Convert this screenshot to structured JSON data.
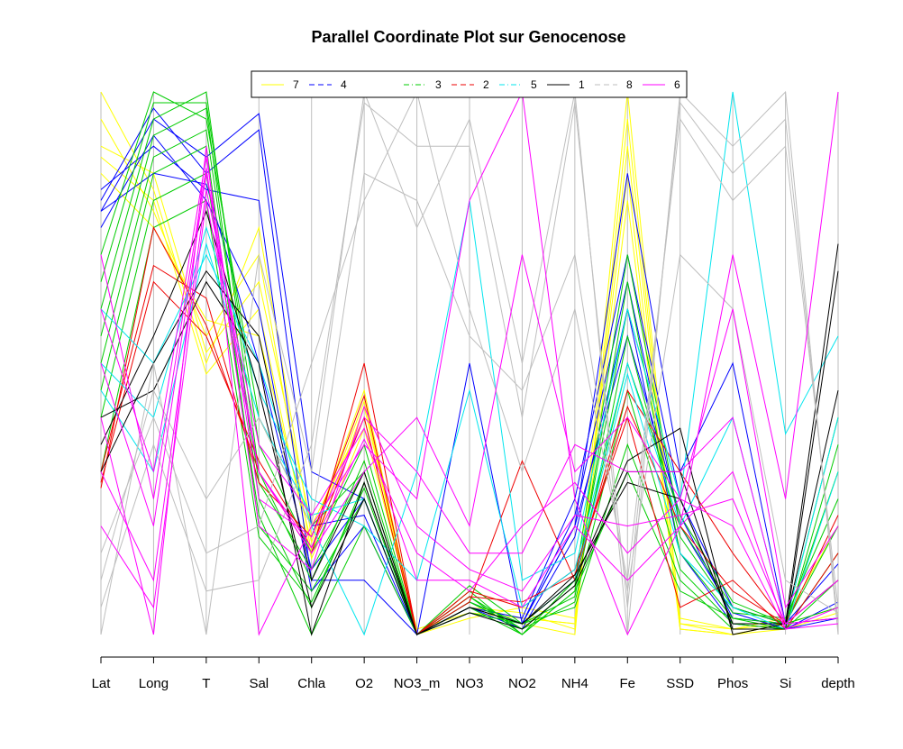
{
  "chart_data": {
    "type": "parallel-coordinates",
    "title": "Parallel Coordinate Plot sur Genocenose",
    "axes": [
      "Lat",
      "Long",
      "T",
      "Sal",
      "Chla",
      "O2",
      "NO3_m",
      "NO3",
      "NO2",
      "NH4",
      "Fe",
      "SSD",
      "Phos",
      "Si",
      "depth"
    ],
    "value_range": [
      0,
      1
    ],
    "grid": false,
    "legend_position": "top",
    "series": [
      {
        "name": "7",
        "color": "#ffff00",
        "dash": "solid",
        "lines": [
          [
            1.0,
            0.82,
            0.5,
            0.75,
            0.18,
            0.45,
            0.0,
            0.04,
            0.03,
            0.02,
            1.0,
            0.02,
            0.0,
            0.02,
            0.03
          ],
          [
            0.95,
            0.78,
            0.55,
            0.7,
            0.15,
            0.42,
            0.0,
            0.05,
            0.04,
            0.01,
            0.9,
            0.03,
            0.01,
            0.02,
            0.05
          ],
          [
            0.9,
            0.85,
            0.52,
            0.65,
            0.2,
            0.4,
            0.0,
            0.03,
            0.05,
            0.03,
            0.85,
            0.01,
            0.0,
            0.01,
            0.04
          ],
          [
            0.88,
            0.8,
            0.48,
            0.6,
            0.14,
            0.38,
            0.01,
            0.04,
            0.02,
            0.0,
            0.95,
            0.02,
            0.01,
            0.03,
            0.2
          ],
          [
            0.85,
            0.75,
            0.58,
            0.55,
            0.17,
            0.43,
            0.0,
            0.05,
            0.03,
            0.02,
            0.8,
            0.01,
            0.0,
            0.02,
            0.3
          ]
        ]
      },
      {
        "name": "4",
        "color": "#0000ff",
        "dash": "dashed",
        "lines": [
          [
            0.78,
            0.95,
            0.88,
            0.96,
            0.3,
            0.25,
            0.0,
            0.5,
            0.02,
            0.2,
            0.85,
            0.3,
            0.5,
            0.02,
            0.1
          ],
          [
            0.8,
            0.97,
            0.85,
            0.93,
            0.2,
            0.22,
            0.0,
            0.05,
            0.03,
            0.25,
            0.7,
            0.25,
            0.05,
            0.02,
            0.13
          ],
          [
            0.82,
            0.9,
            0.82,
            0.8,
            0.1,
            0.1,
            0.0,
            0.06,
            0.02,
            0.22,
            0.65,
            0.2,
            0.04,
            0.01,
            0.06
          ],
          [
            0.75,
            0.92,
            0.8,
            0.6,
            0.08,
            0.2,
            0.0,
            0.05,
            0.01,
            0.18,
            0.6,
            0.15,
            0.02,
            0.01,
            0.03
          ],
          [
            0.78,
            0.85,
            0.83,
            0.5,
            0.12,
            0.25,
            0.0,
            0.04,
            0.02,
            0.2,
            0.55,
            0.22,
            0.03,
            0.02,
            0.03
          ]
        ]
      },
      {
        "name": "3",
        "color": "#00cc00",
        "dash": "dashdot",
        "lines": [
          [
            0.7,
            1.0,
            0.95,
            0.4,
            0.2,
            0.3,
            0.0,
            0.06,
            0.02,
            0.1,
            0.7,
            0.2,
            0.05,
            0.02,
            0.4
          ],
          [
            0.65,
            0.98,
            0.98,
            0.35,
            0.15,
            0.35,
            0.0,
            0.08,
            0.0,
            0.08,
            0.65,
            0.15,
            0.03,
            0.01,
            0.35
          ],
          [
            0.6,
            0.95,
            1.0,
            0.3,
            0.1,
            0.32,
            0.0,
            0.07,
            0.01,
            0.09,
            0.6,
            0.25,
            0.02,
            0.02,
            0.3
          ],
          [
            0.55,
            0.92,
            0.97,
            0.25,
            0.05,
            0.28,
            0.0,
            0.09,
            0.02,
            0.07,
            0.55,
            0.18,
            0.04,
            0.03,
            0.25
          ],
          [
            0.5,
            0.88,
            0.93,
            0.28,
            0.12,
            0.3,
            0.0,
            0.05,
            0.0,
            0.1,
            0.5,
            0.22,
            0.06,
            0.02,
            0.2
          ],
          [
            0.45,
            0.85,
            0.9,
            0.2,
            0.08,
            0.25,
            0.0,
            0.06,
            0.01,
            0.06,
            0.45,
            0.12,
            0.02,
            0.01,
            0.15
          ],
          [
            0.4,
            0.8,
            0.85,
            0.22,
            0.0,
            0.2,
            0.0,
            0.04,
            0.02,
            0.05,
            0.35,
            0.1,
            0.01,
            0.01,
            0.1
          ],
          [
            0.3,
            0.75,
            0.8,
            0.18,
            0.06,
            0.27,
            0.0,
            0.07,
            0.0,
            0.08,
            0.3,
            0.08,
            0.03,
            0.02,
            0.05
          ]
        ]
      },
      {
        "name": "2",
        "color": "#ee0000",
        "dash": "dashed",
        "lines": [
          [
            0.27,
            0.75,
            0.57,
            0.3,
            0.15,
            0.5,
            0.0,
            0.06,
            0.32,
            0.1,
            0.45,
            0.3,
            0.15,
            0.02,
            0.22
          ],
          [
            0.3,
            0.68,
            0.62,
            0.28,
            0.18,
            0.44,
            0.0,
            0.08,
            0.05,
            0.12,
            0.4,
            0.05,
            0.1,
            0.01,
            0.15
          ],
          [
            0.28,
            0.65,
            0.55,
            0.32,
            0.16,
            0.4,
            0.0,
            0.07,
            0.06,
            0.11,
            0.42,
            0.2,
            0.08,
            0.02,
            0.1
          ]
        ]
      },
      {
        "name": "5",
        "color": "#00e5ee",
        "dash": "dashdot",
        "lines": [
          [
            0.6,
            0.5,
            0.7,
            0.5,
            0.2,
            0.0,
            0.3,
            0.8,
            0.1,
            0.15,
            0.6,
            0.25,
            1.0,
            0.37,
            0.55
          ],
          [
            0.5,
            0.4,
            0.75,
            0.45,
            0.25,
            0.2,
            0.1,
            0.45,
            0.05,
            0.12,
            0.5,
            0.2,
            0.4,
            0.02,
            0.4
          ],
          [
            0.45,
            0.3,
            0.72,
            0.4,
            0.22,
            0.25,
            0.0,
            0.05,
            0.02,
            0.1,
            0.48,
            0.15,
            0.05,
            0.01,
            0.3
          ]
        ]
      },
      {
        "name": "1",
        "color": "#000000",
        "dash": "solid",
        "lines": [
          [
            0.3,
            0.5,
            0.67,
            0.55,
            0.1,
            0.3,
            0.0,
            0.05,
            0.02,
            0.1,
            0.32,
            0.38,
            0.0,
            0.02,
            0.72
          ],
          [
            0.4,
            0.45,
            0.65,
            0.5,
            0.0,
            0.28,
            0.0,
            0.04,
            0.01,
            0.09,
            0.3,
            0.3,
            0.01,
            0.01,
            0.67
          ],
          [
            0.35,
            0.55,
            0.78,
            0.45,
            0.05,
            0.25,
            0.0,
            0.05,
            0.02,
            0.11,
            0.28,
            0.25,
            0.02,
            0.02,
            0.45
          ]
        ]
      },
      {
        "name": "8",
        "color": "#bebebe",
        "dash": "dashed",
        "lines": [
          [
            0.0,
            0.5,
            0.0,
            0.7,
            0.3,
            1.0,
            0.75,
            0.95,
            0.5,
            1.0,
            0.0,
            1.0,
            0.9,
            1.0,
            0.0
          ],
          [
            0.15,
            0.4,
            0.15,
            0.2,
            0.5,
            0.8,
            1.0,
            0.6,
            0.3,
            0.6,
            0.1,
            0.95,
            0.8,
            0.9,
            0.05
          ],
          [
            0.05,
            0.35,
            0.08,
            0.1,
            0.35,
            0.98,
            0.9,
            0.9,
            0.4,
            0.98,
            0.05,
            0.98,
            0.85,
            0.95,
            0.02
          ],
          [
            0.1,
            0.45,
            0.25,
            0.4,
            0.2,
            0.85,
            0.8,
            0.55,
            0.45,
            0.7,
            0.08,
            0.7,
            0.6,
            0.1,
            0.04
          ]
        ]
      },
      {
        "name": "6",
        "color": "#ff00ff",
        "dash": "solid",
        "lines": [
          [
            0.4,
            0.0,
            0.9,
            0.0,
            0.2,
            0.35,
            0.25,
            0.8,
            1.0,
            0.25,
            0.0,
            0.2,
            0.7,
            0.25,
            1.0
          ],
          [
            0.5,
            0.2,
            0.85,
            0.3,
            0.15,
            0.3,
            0.4,
            0.2,
            0.7,
            0.3,
            0.4,
            0.25,
            0.6,
            0.05,
            0.2
          ],
          [
            0.6,
            0.3,
            0.88,
            0.25,
            0.18,
            0.4,
            0.3,
            0.15,
            0.15,
            0.35,
            0.3,
            0.3,
            0.4,
            0.02,
            0.1
          ],
          [
            0.3,
            0.1,
            0.82,
            0.35,
            0.22,
            0.38,
            0.1,
            0.1,
            0.05,
            0.2,
            0.1,
            0.2,
            0.3,
            0.01,
            0.05
          ],
          [
            0.7,
            0.25,
            0.86,
            0.2,
            0.12,
            0.42,
            0.2,
            0.12,
            0.08,
            0.22,
            0.2,
            0.22,
            0.25,
            0.02,
            0.03
          ],
          [
            0.2,
            0.05,
            0.8,
            0.3,
            0.16,
            0.36,
            0.15,
            0.08,
            0.2,
            0.28,
            0.15,
            0.25,
            0.2,
            0.01,
            0.02
          ]
        ]
      }
    ]
  }
}
